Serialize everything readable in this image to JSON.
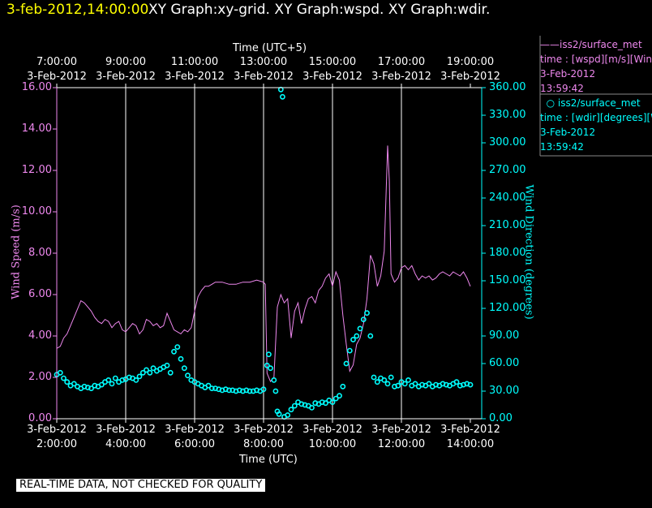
{
  "header": {
    "timestamp": "3-feb-2012,14:00:00",
    "title": "XY Graph:xy-grid.  XY Graph:wspd.  XY Graph:wdir."
  },
  "axes": {
    "top_title": "Time (UTC+5)",
    "bottom_title": "Time (UTC)",
    "left_title": "Wind Speed (m/s)",
    "right_title": "Wind Direction (degrees)",
    "top_ticks": [
      {
        "date": "3-Feb-2012",
        "time": "7:00:00"
      },
      {
        "date": "3-Feb-2012",
        "time": "9:00:00"
      },
      {
        "date": "3-Feb-2012",
        "time": "11:00:00"
      },
      {
        "date": "3-Feb-2012",
        "time": "13:00:00"
      },
      {
        "date": "3-Feb-2012",
        "time": "15:00:00"
      },
      {
        "date": "3-Feb-2012",
        "time": "17:00:00"
      },
      {
        "date": "3-Feb-2012",
        "time": "19:00:00"
      }
    ],
    "bottom_ticks": [
      {
        "date": "3-Feb-2012",
        "time": "2:00:00"
      },
      {
        "date": "3-Feb-2012",
        "time": "4:00:00"
      },
      {
        "date": "3-Feb-2012",
        "time": "6:00:00"
      },
      {
        "date": "3-Feb-2012",
        "time": "8:00:00"
      },
      {
        "date": "3-Feb-2012",
        "time": "10:00:00"
      },
      {
        "date": "3-Feb-2012",
        "time": "12:00:00"
      },
      {
        "date": "3-Feb-2012",
        "time": "14:00:00"
      }
    ],
    "left_ticks": [
      "0.00",
      "2.00",
      "4.00",
      "6.00",
      "8.00",
      "10.00",
      "12.00",
      "14.00",
      "16.00"
    ],
    "right_ticks": [
      "0.00",
      "30.00",
      "60.00",
      "90.00",
      "120.00",
      "150.00",
      "180.00",
      "210.00",
      "240.00",
      "270.00",
      "300.00",
      "330.00",
      "360.00"
    ]
  },
  "legend": {
    "series1": {
      "name": "iss2/surface_met",
      "var": "time : [wspd][m/s][Wind",
      "date": "3-Feb-2012",
      "time": "13:59:42"
    },
    "series2": {
      "name": "iss2/surface_met",
      "var": "time : [wdir][degrees][W",
      "date": "3-Feb-2012",
      "time": "13:59:42"
    }
  },
  "footer": "REAL-TIME DATA, NOT CHECKED FOR QUALITY",
  "colors": {
    "wspd": "#ee88ee",
    "wdir": "#00ffff",
    "header_time": "#ffff00",
    "grid": "#ffffff",
    "background": "#000000"
  },
  "chart_data": {
    "type": "line",
    "x_unit": "hours UTC, 3-Feb-2012",
    "xlim": [
      2.0,
      14.0
    ],
    "grid": true,
    "series": [
      {
        "name": "iss2/surface_met",
        "variable": "wspd",
        "axis": "left",
        "style": "line",
        "ylim": [
          0,
          16
        ],
        "points": [
          [
            2.0,
            3.4
          ],
          [
            2.1,
            3.5
          ],
          [
            2.2,
            3.9
          ],
          [
            2.3,
            4.1
          ],
          [
            2.4,
            4.5
          ],
          [
            2.5,
            4.9
          ],
          [
            2.6,
            5.3
          ],
          [
            2.7,
            5.7
          ],
          [
            2.8,
            5.6
          ],
          [
            2.9,
            5.4
          ],
          [
            3.0,
            5.2
          ],
          [
            3.1,
            4.9
          ],
          [
            3.2,
            4.7
          ],
          [
            3.3,
            4.6
          ],
          [
            3.4,
            4.8
          ],
          [
            3.5,
            4.7
          ],
          [
            3.6,
            4.4
          ],
          [
            3.7,
            4.6
          ],
          [
            3.8,
            4.7
          ],
          [
            3.9,
            4.3
          ],
          [
            4.0,
            4.2
          ],
          [
            4.1,
            4.4
          ],
          [
            4.2,
            4.6
          ],
          [
            4.3,
            4.5
          ],
          [
            4.4,
            4.1
          ],
          [
            4.5,
            4.3
          ],
          [
            4.6,
            4.8
          ],
          [
            4.7,
            4.7
          ],
          [
            4.8,
            4.5
          ],
          [
            4.9,
            4.6
          ],
          [
            5.0,
            4.4
          ],
          [
            5.1,
            4.5
          ],
          [
            5.2,
            5.1
          ],
          [
            5.3,
            4.7
          ],
          [
            5.4,
            4.3
          ],
          [
            5.5,
            4.2
          ],
          [
            5.6,
            4.1
          ],
          [
            5.7,
            4.3
          ],
          [
            5.8,
            4.2
          ],
          [
            5.9,
            4.4
          ],
          [
            6.0,
            5.2
          ],
          [
            6.1,
            5.9
          ],
          [
            6.2,
            6.2
          ],
          [
            6.3,
            6.4
          ],
          [
            6.4,
            6.4
          ],
          [
            6.5,
            6.5
          ],
          [
            6.6,
            6.6
          ],
          [
            6.8,
            6.6
          ],
          [
            7.0,
            6.5
          ],
          [
            7.2,
            6.5
          ],
          [
            7.4,
            6.6
          ],
          [
            7.6,
            6.6
          ],
          [
            7.8,
            6.7
          ],
          [
            8.0,
            6.6
          ],
          [
            8.05,
            6.5
          ],
          [
            8.1,
            2.2
          ],
          [
            8.2,
            1.8
          ],
          [
            8.3,
            2.0
          ],
          [
            8.4,
            5.4
          ],
          [
            8.5,
            6.0
          ],
          [
            8.6,
            5.6
          ],
          [
            8.7,
            5.8
          ],
          [
            8.8,
            3.9
          ],
          [
            8.9,
            5.2
          ],
          [
            9.0,
            5.6
          ],
          [
            9.1,
            4.6
          ],
          [
            9.2,
            5.3
          ],
          [
            9.3,
            5.8
          ],
          [
            9.4,
            5.9
          ],
          [
            9.5,
            5.6
          ],
          [
            9.6,
            6.2
          ],
          [
            9.7,
            6.4
          ],
          [
            9.8,
            6.8
          ],
          [
            9.9,
            7.0
          ],
          [
            10.0,
            6.4
          ],
          [
            10.1,
            7.1
          ],
          [
            10.2,
            6.7
          ],
          [
            10.3,
            5.0
          ],
          [
            10.4,
            3.6
          ],
          [
            10.5,
            2.3
          ],
          [
            10.6,
            2.6
          ],
          [
            10.7,
            3.6
          ],
          [
            10.8,
            3.9
          ],
          [
            10.9,
            4.6
          ],
          [
            11.0,
            5.8
          ],
          [
            11.1,
            7.9
          ],
          [
            11.2,
            7.5
          ],
          [
            11.3,
            6.4
          ],
          [
            11.4,
            6.9
          ],
          [
            11.5,
            8.1
          ],
          [
            11.6,
            13.2
          ],
          [
            11.65,
            11.5
          ],
          [
            11.7,
            7.0
          ],
          [
            11.8,
            6.6
          ],
          [
            11.9,
            6.8
          ],
          [
            12.0,
            7.3
          ],
          [
            12.1,
            7.4
          ],
          [
            12.2,
            7.2
          ],
          [
            12.3,
            7.4
          ],
          [
            12.4,
            7.0
          ],
          [
            12.5,
            6.7
          ],
          [
            12.6,
            6.9
          ],
          [
            12.7,
            6.8
          ],
          [
            12.8,
            6.9
          ],
          [
            12.9,
            6.7
          ],
          [
            13.0,
            6.8
          ],
          [
            13.1,
            7.0
          ],
          [
            13.2,
            7.1
          ],
          [
            13.3,
            7.0
          ],
          [
            13.4,
            6.9
          ],
          [
            13.5,
            7.1
          ],
          [
            13.6,
            7.0
          ],
          [
            13.7,
            6.9
          ],
          [
            13.8,
            7.1
          ],
          [
            13.9,
            6.8
          ],
          [
            14.0,
            6.4
          ]
        ]
      },
      {
        "name": "iss2/surface_met",
        "variable": "wdir",
        "axis": "right",
        "style": "markers",
        "ylim": [
          0,
          360
        ],
        "points": [
          [
            2.0,
            48
          ],
          [
            2.1,
            50
          ],
          [
            2.2,
            44
          ],
          [
            2.3,
            40
          ],
          [
            2.4,
            36
          ],
          [
            2.5,
            38
          ],
          [
            2.6,
            35
          ],
          [
            2.7,
            33
          ],
          [
            2.8,
            35
          ],
          [
            2.9,
            34
          ],
          [
            3.0,
            33
          ],
          [
            3.1,
            36
          ],
          [
            3.2,
            35
          ],
          [
            3.3,
            37
          ],
          [
            3.4,
            40
          ],
          [
            3.5,
            42
          ],
          [
            3.6,
            38
          ],
          [
            3.7,
            44
          ],
          [
            3.8,
            40
          ],
          [
            3.9,
            42
          ],
          [
            4.0,
            43
          ],
          [
            4.1,
            45
          ],
          [
            4.2,
            44
          ],
          [
            4.3,
            42
          ],
          [
            4.4,
            46
          ],
          [
            4.5,
            50
          ],
          [
            4.6,
            53
          ],
          [
            4.7,
            50
          ],
          [
            4.8,
            55
          ],
          [
            4.9,
            52
          ],
          [
            5.0,
            54
          ],
          [
            5.1,
            56
          ],
          [
            5.2,
            58
          ],
          [
            5.3,
            50
          ],
          [
            5.4,
            73
          ],
          [
            5.5,
            78
          ],
          [
            5.6,
            65
          ],
          [
            5.7,
            55
          ],
          [
            5.8,
            47
          ],
          [
            5.9,
            42
          ],
          [
            6.0,
            40
          ],
          [
            6.1,
            38
          ],
          [
            6.2,
            36
          ],
          [
            6.3,
            34
          ],
          [
            6.4,
            36
          ],
          [
            6.5,
            33
          ],
          [
            6.6,
            33
          ],
          [
            6.7,
            32
          ],
          [
            6.8,
            31
          ],
          [
            6.9,
            32
          ],
          [
            7.0,
            31
          ],
          [
            7.1,
            31
          ],
          [
            7.2,
            30
          ],
          [
            7.3,
            31
          ],
          [
            7.4,
            30
          ],
          [
            7.5,
            31
          ],
          [
            7.6,
            30
          ],
          [
            7.7,
            30
          ],
          [
            7.8,
            31
          ],
          [
            7.9,
            30
          ],
          [
            8.0,
            32
          ],
          [
            8.1,
            58
          ],
          [
            8.15,
            70
          ],
          [
            8.2,
            55
          ],
          [
            8.3,
            42
          ],
          [
            8.35,
            30
          ],
          [
            8.4,
            8
          ],
          [
            8.45,
            5
          ],
          [
            8.5,
            358
          ],
          [
            8.55,
            350
          ],
          [
            8.6,
            2
          ],
          [
            8.7,
            4
          ],
          [
            8.8,
            10
          ],
          [
            8.9,
            14
          ],
          [
            9.0,
            18
          ],
          [
            9.1,
            16
          ],
          [
            9.2,
            15
          ],
          [
            9.3,
            14
          ],
          [
            9.4,
            12
          ],
          [
            9.5,
            17
          ],
          [
            9.6,
            16
          ],
          [
            9.7,
            18
          ],
          [
            9.8,
            17
          ],
          [
            9.9,
            20
          ],
          [
            10.0,
            18
          ],
          [
            10.1,
            22
          ],
          [
            10.2,
            25
          ],
          [
            10.3,
            35
          ],
          [
            10.4,
            60
          ],
          [
            10.5,
            74
          ],
          [
            10.6,
            86
          ],
          [
            10.7,
            90
          ],
          [
            10.8,
            98
          ],
          [
            10.9,
            108
          ],
          [
            11.0,
            115
          ],
          [
            11.1,
            90
          ],
          [
            11.2,
            45
          ],
          [
            11.3,
            40
          ],
          [
            11.4,
            44
          ],
          [
            11.5,
            42
          ],
          [
            11.6,
            38
          ],
          [
            11.7,
            45
          ],
          [
            11.8,
            35
          ],
          [
            11.9,
            36
          ],
          [
            12.0,
            40
          ],
          [
            12.1,
            38
          ],
          [
            12.2,
            42
          ],
          [
            12.3,
            36
          ],
          [
            12.4,
            38
          ],
          [
            12.5,
            35
          ],
          [
            12.6,
            37
          ],
          [
            12.7,
            36
          ],
          [
            12.8,
            38
          ],
          [
            12.9,
            35
          ],
          [
            13.0,
            37
          ],
          [
            13.1,
            36
          ],
          [
            13.2,
            38
          ],
          [
            13.3,
            37
          ],
          [
            13.4,
            36
          ],
          [
            13.5,
            38
          ],
          [
            13.6,
            40
          ],
          [
            13.7,
            36
          ],
          [
            13.8,
            37
          ],
          [
            13.9,
            38
          ],
          [
            14.0,
            37
          ]
        ]
      }
    ]
  }
}
